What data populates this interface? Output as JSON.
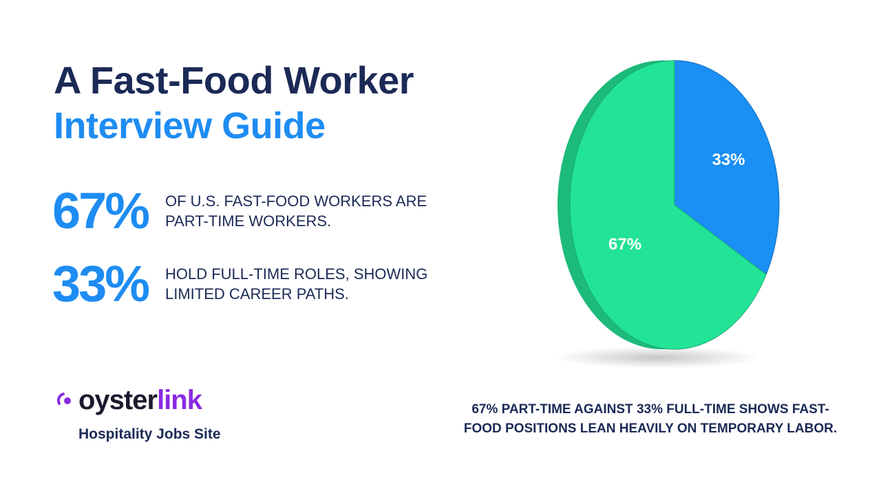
{
  "title": {
    "line1": "A Fast-Food Worker",
    "line2": "Interview Guide"
  },
  "stats": [
    {
      "number": "67%",
      "text_line1": "OF U.S. FAST-FOOD WORKERS ARE",
      "text_line2": "PART-TIME WORKERS."
    },
    {
      "number": "33%",
      "text_line1": "HOLD FULL-TIME ROLES, SHOWING",
      "text_line2": "LIMITED CAREER PATHS."
    }
  ],
  "logo": {
    "part1": "oyster",
    "part2": "link",
    "tagline": "Hospitality Jobs Site",
    "mark_icon": "oysterlink-logo-icon"
  },
  "chart_data": {
    "type": "pie",
    "slices": [
      {
        "label": "33%",
        "value": 33,
        "color": "#1a8ff5"
      },
      {
        "label": "67%",
        "value": 67,
        "color": "#22e396"
      }
    ]
  },
  "caption": {
    "line1": "67% PART-TIME AGAINST 33% FULL-TIME SHOWS FAST-",
    "line2": "FOOD POSITIONS LEAN HEAVILY ON TEMPORARY LABOR."
  }
}
